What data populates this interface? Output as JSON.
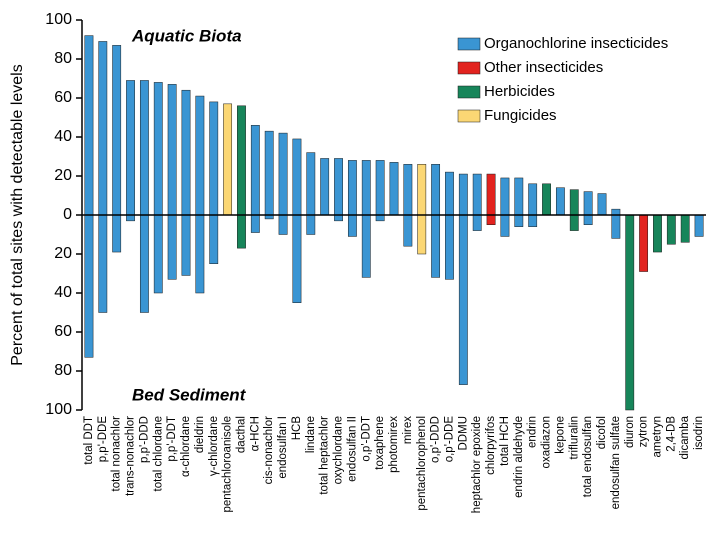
{
  "chart_data": {
    "type": "diverging-bar",
    "y_label": "Percent of total sites with detectable levels",
    "annotations": [
      "Aquatic Biota",
      "Bed Sediment"
    ],
    "categories": [
      "total DDT",
      "p,p'-DDE",
      "total nonachlor",
      "trans-nonachlor",
      "p,p'-DDD",
      "total chlordane",
      "p,p'-DDT",
      "α-chlordane",
      "dieldrin",
      "γ-chlordane",
      "pentachloroanisole",
      "dacthal",
      "α-HCH",
      "cis-nonachlor",
      "endosulfan I",
      "HCB",
      "lindane",
      "total heptachlor",
      "oxychlordane",
      "endosulfan II",
      "o,p'-DDT",
      "toxaphene",
      "photomirex",
      "mirex",
      "pentachlorophenol",
      "o,p'-DDD",
      "o,p'-DDE",
      "DDMU",
      "heptachlor epoxide",
      "chlorpyrifos",
      "total HCH",
      "endrin aldehyde",
      "endrin",
      "oxadiazon",
      "kepone",
      "trifluralin",
      "total endosulfan",
      "dicofol",
      "endosulfan sulfate",
      "diuron",
      "zytron",
      "ametryn",
      "2,4-DB",
      "dicamba",
      "isodrin"
    ],
    "series": [
      {
        "name": "Aquatic Biota",
        "values": [
          92,
          89,
          87,
          69,
          69,
          68,
          67,
          64,
          61,
          58,
          57,
          56,
          46,
          43,
          42,
          39,
          32,
          29,
          29,
          28,
          28,
          28,
          27,
          26,
          26,
          26,
          22,
          21,
          21,
          21,
          19,
          19,
          16,
          16,
          14,
          13,
          12,
          11,
          3,
          0,
          0,
          0,
          0,
          0,
          0
        ]
      },
      {
        "name": "Bed Sediment",
        "values": [
          -73,
          -50,
          -19,
          -3,
          -50,
          -40,
          -33,
          -31,
          -40,
          -25,
          0,
          -17,
          -9,
          -2,
          -10,
          -45,
          -10,
          0,
          -3,
          -11,
          -32,
          -3,
          0,
          -16,
          -20,
          -32,
          -33,
          -87,
          -8,
          -5,
          -11,
          -6,
          -6,
          0,
          0,
          -8,
          -5,
          0,
          -12,
          -100,
          -29,
          -19,
          -15,
          -14,
          -11
        ]
      }
    ],
    "bar_colors": [
      "#3a95d3",
      "#3a95d3",
      "#3a95d3",
      "#3a95d3",
      "#3a95d3",
      "#3a95d3",
      "#3a95d3",
      "#3a95d3",
      "#3a95d3",
      "#3a95d3",
      "#fbd774",
      "#17855a",
      "#3a95d3",
      "#3a95d3",
      "#3a95d3",
      "#3a95d3",
      "#3a95d3",
      "#3a95d3",
      "#3a95d3",
      "#3a95d3",
      "#3a95d3",
      "#3a95d3",
      "#3a95d3",
      "#3a95d3",
      "#fbd774",
      "#3a95d3",
      "#3a95d3",
      "#3a95d3",
      "#3a95d3",
      "#e2231f",
      "#3a95d3",
      "#3a95d3",
      "#3a95d3",
      "#17855a",
      "#3a95d3",
      "#17855a",
      "#3a95d3",
      "#3a95d3",
      "#3a95d3",
      "#17855a",
      "#e2231f",
      "#17855a",
      "#17855a",
      "#17855a",
      "#3a95d3"
    ],
    "legend": [
      {
        "name": "Organochlorine insecticides",
        "color": "#3a95d3"
      },
      {
        "name": "Other insecticides",
        "color": "#e2231f"
      },
      {
        "name": "Herbicides",
        "color": "#17855a"
      },
      {
        "name": "Fungicides",
        "color": "#fbd774"
      }
    ],
    "ylim": [
      -100,
      100
    ],
    "yticks": [
      {
        "value": -100,
        "label": "100"
      },
      {
        "value": -80,
        "label": "80"
      },
      {
        "value": -60,
        "label": "60"
      },
      {
        "value": -40,
        "label": "40"
      },
      {
        "value": -20,
        "label": "20"
      },
      0,
      20,
      40,
      60,
      80,
      100
    ]
  }
}
